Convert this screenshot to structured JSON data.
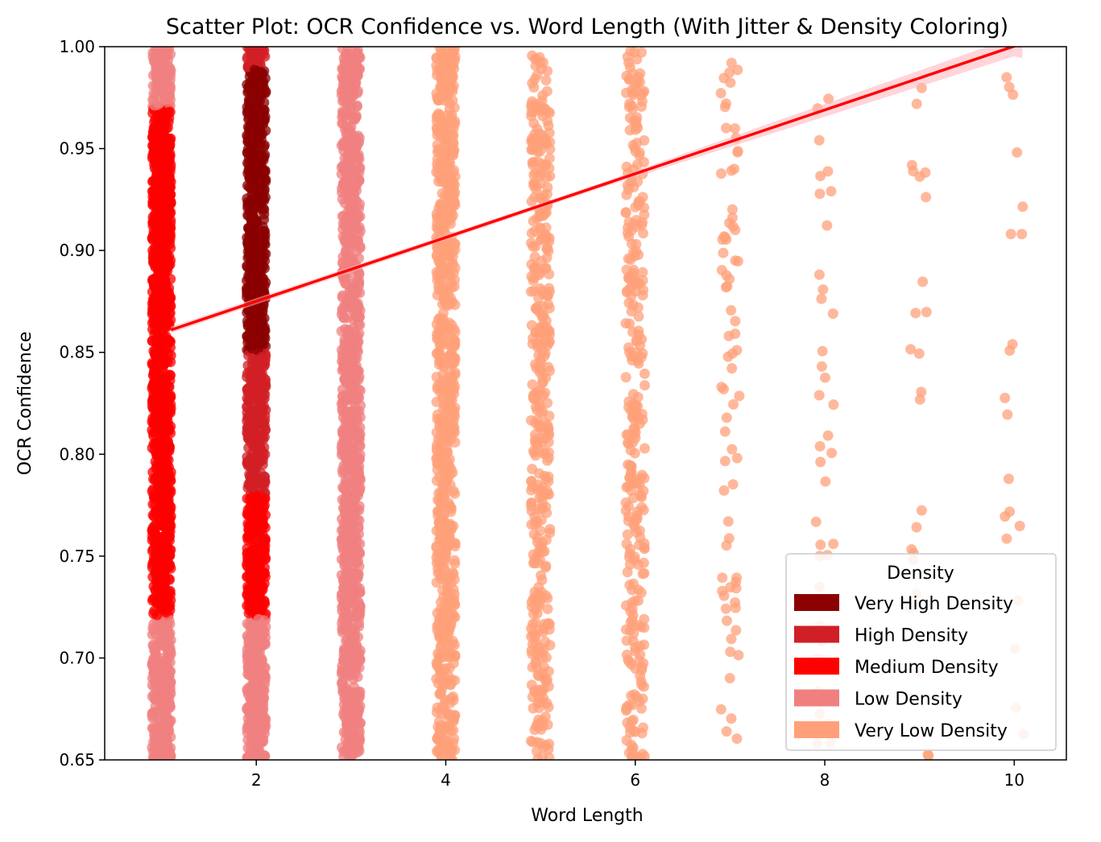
{
  "chart_data": {
    "type": "scatter",
    "title": "Scatter Plot: OCR Confidence vs. Word Length (With Jitter & Density Coloring)",
    "xlabel": "Word Length",
    "ylabel": "OCR Confidence",
    "xlim": [
      0.4,
      10.55
    ],
    "ylim": [
      0.65,
      1.0
    ],
    "x_ticks": [
      2,
      4,
      6,
      8,
      10
    ],
    "y_ticks": [
      0.65,
      0.7,
      0.75,
      0.8,
      0.85,
      0.9,
      0.95,
      1.0
    ],
    "y_tick_labels": [
      "0.65",
      "0.70",
      "0.75",
      "0.80",
      "0.85",
      "0.90",
      "0.95",
      "1.00"
    ],
    "grid": false,
    "jitter": 0.1,
    "columns": [
      {
        "x": 1,
        "count": 1400,
        "density": "medium"
      },
      {
        "x": 2,
        "count": 1300,
        "density": "high"
      },
      {
        "x": 3,
        "count": 1000,
        "density": "low"
      },
      {
        "x": 4,
        "count": 800,
        "density": "very_low"
      },
      {
        "x": 5,
        "count": 420,
        "density": "very_low"
      },
      {
        "x": 6,
        "count": 300,
        "density": "very_low"
      },
      {
        "x": 7,
        "count": 75,
        "density": "very_low"
      },
      {
        "x": 8,
        "count": 38,
        "density": "very_low"
      },
      {
        "x": 9,
        "count": 24,
        "density": "very_low"
      },
      {
        "x": 10,
        "count": 20,
        "density": "very_low"
      }
    ],
    "trend_line": {
      "x_start": 1.1,
      "y_start": 0.861,
      "x_end": 10.0,
      "y_end": 1.0,
      "color": "#ff0000",
      "band_color": "#ffb3ba"
    },
    "legend": {
      "title": "Density",
      "position": "lower-right",
      "entries": [
        {
          "label": "Very High Density",
          "color": "#8b0000"
        },
        {
          "label": "High Density",
          "color": "#d11f26"
        },
        {
          "label": "Medium Density",
          "color": "#ff0000"
        },
        {
          "label": "Low Density",
          "color": "#f08080"
        },
        {
          "label": "Very Low Density",
          "color": "#ffa07a"
        }
      ]
    },
    "density_colors": {
      "very_high": "#8b0000",
      "high": "#d11f26",
      "medium": "#ff0000",
      "low": "#f08080",
      "very_low": "#ffa07a"
    }
  }
}
